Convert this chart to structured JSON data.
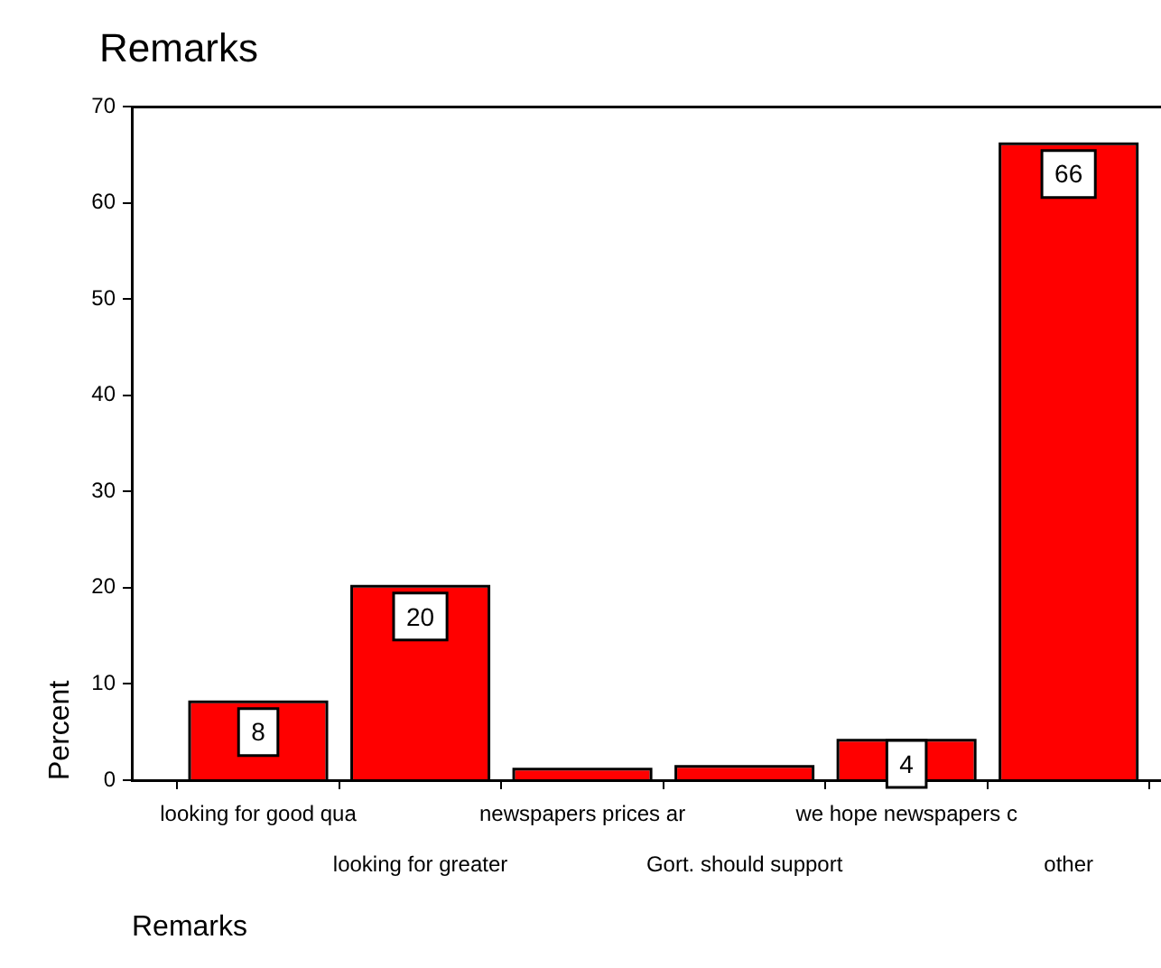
{
  "chart_data": {
    "type": "bar",
    "title": "Remarks",
    "xlabel": "Remarks",
    "ylabel": "Percent",
    "categories": [
      "looking for good qua",
      "looking for greater",
      "newspapers prices ar",
      "Gort. should support",
      "we hope newspapers c",
      "other"
    ],
    "values": [
      8,
      20,
      1,
      1.3,
      4,
      66
    ],
    "value_labels": [
      "8",
      "20",
      null,
      null,
      "4",
      "66"
    ],
    "color": "#ff0000",
    "ylim": [
      0,
      70
    ],
    "yticks": [
      0,
      10,
      20,
      30,
      40,
      50,
      60,
      70
    ],
    "grid": false,
    "legend": false
  }
}
